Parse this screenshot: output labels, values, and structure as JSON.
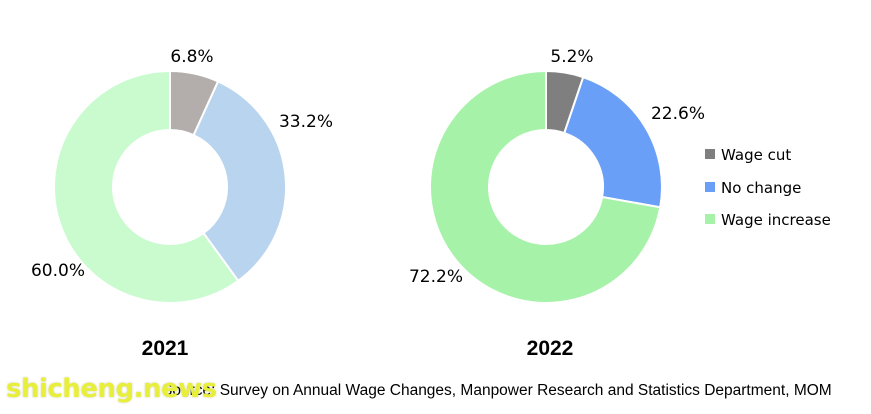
{
  "chart_data": [
    {
      "type": "pie",
      "title": "2021",
      "categories": [
        "Wage cut",
        "No change",
        "Wage increase"
      ],
      "values": [
        6.8,
        33.2,
        60.0
      ],
      "labels": [
        "6.8%",
        "33.2%",
        "60.0%"
      ],
      "colors": [
        "#b3aeab",
        "#b8d4ee",
        "#c9fbcf"
      ]
    },
    {
      "type": "pie",
      "title": "2022",
      "categories": [
        "Wage cut",
        "No change",
        "Wage increase"
      ],
      "values": [
        5.2,
        22.6,
        72.2
      ],
      "labels": [
        "5.2%",
        "22.6%",
        "72.2%"
      ],
      "colors": [
        "#7f7f7f",
        "#6a9ff8",
        "#a6f2a8"
      ]
    }
  ],
  "legend": {
    "placement": "right",
    "items": [
      {
        "label": "Wage cut",
        "color": "#7f7f7f"
      },
      {
        "label": "No change",
        "color": "#6a9ff8"
      },
      {
        "label": "Wage increase",
        "color": "#a6f2a8"
      }
    ]
  },
  "source_text": "Source: Survey on Annual Wage Changes, Manpower Research and Statistics Department, MOM",
  "watermark_text": "shicheng.news"
}
